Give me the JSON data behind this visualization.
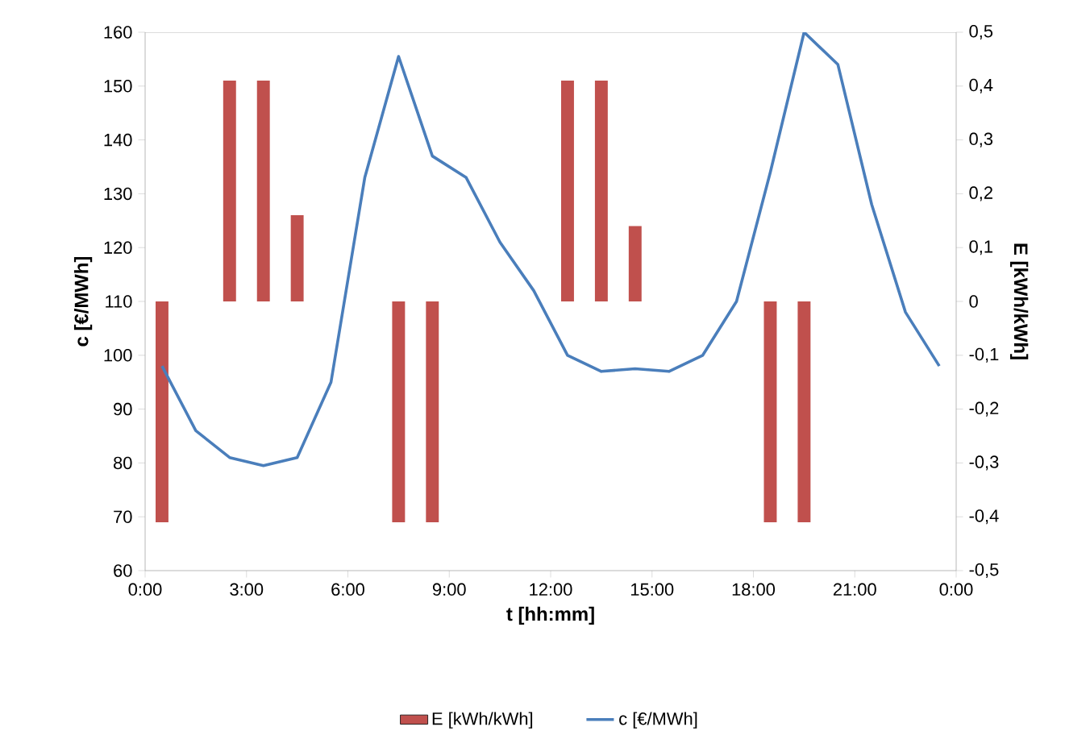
{
  "chart_data": {
    "type": "line",
    "xlabel": "t [hh:mm]",
    "ylabel": "c [€/MWh]",
    "y2label": "E [kWh/kWh]",
    "xlim": [
      0,
      24
    ],
    "xticks": [
      {
        "value": 0,
        "label": "0:00"
      },
      {
        "value": 3,
        "label": "3:00"
      },
      {
        "value": 6,
        "label": "6:00"
      },
      {
        "value": 9,
        "label": "9:00"
      },
      {
        "value": 12,
        "label": "12:00"
      },
      {
        "value": 15,
        "label": "15:00"
      },
      {
        "value": 18,
        "label": "18:00"
      },
      {
        "value": 21,
        "label": "21:00"
      },
      {
        "value": 24,
        "label": "0:00"
      }
    ],
    "ylim": [
      60,
      160
    ],
    "yticks": [
      60,
      70,
      80,
      90,
      100,
      110,
      120,
      130,
      140,
      150,
      160
    ],
    "y2lim": [
      -0.5,
      0.5
    ],
    "y2ticks": [
      {
        "value": -0.5,
        "label": "-0,5"
      },
      {
        "value": -0.4,
        "label": "-0,4"
      },
      {
        "value": -0.3,
        "label": "-0,3"
      },
      {
        "value": -0.2,
        "label": "-0,2"
      },
      {
        "value": -0.1,
        "label": "-0,1"
      },
      {
        "value": 0,
        "label": "0"
      },
      {
        "value": 0.1,
        "label": "0,1"
      },
      {
        "value": 0.2,
        "label": "0,2"
      },
      {
        "value": 0.3,
        "label": "0,3"
      },
      {
        "value": 0.4,
        "label": "0,4"
      },
      {
        "value": 0.5,
        "label": "0,5"
      }
    ],
    "legend": "bottom",
    "marker": "none",
    "series": [
      {
        "name": "E [kWh/kWh]",
        "type": "bar",
        "axis": "y2",
        "color": "#c0504d",
        "x": [
          0.5,
          2.5,
          3.5,
          4.5,
          7.5,
          8.5,
          12.5,
          13.5,
          14.5,
          18.5,
          19.5
        ],
        "values": [
          -0.41,
          0.41,
          0.41,
          0.16,
          -0.41,
          -0.41,
          0.41,
          0.41,
          0.14,
          -0.41,
          -0.41
        ]
      },
      {
        "name": "c [€/MWh]",
        "color": "#4a7ebb",
        "x": [
          0.5,
          1.5,
          2.5,
          3.5,
          4.5,
          5.5,
          6.5,
          7.5,
          8.5,
          9.5,
          10.5,
          11.5,
          12.5,
          13.5,
          14.5,
          15.5,
          16.5,
          17.5,
          18.5,
          19.5,
          20.5,
          21.5,
          22.5,
          23.5
        ],
        "values": [
          98,
          86,
          81,
          79.5,
          81,
          95,
          133,
          155.5,
          137,
          133,
          121,
          112,
          100,
          97,
          97.5,
          97,
          100,
          110,
          134,
          160,
          154,
          128,
          108,
          98
        ]
      }
    ]
  }
}
